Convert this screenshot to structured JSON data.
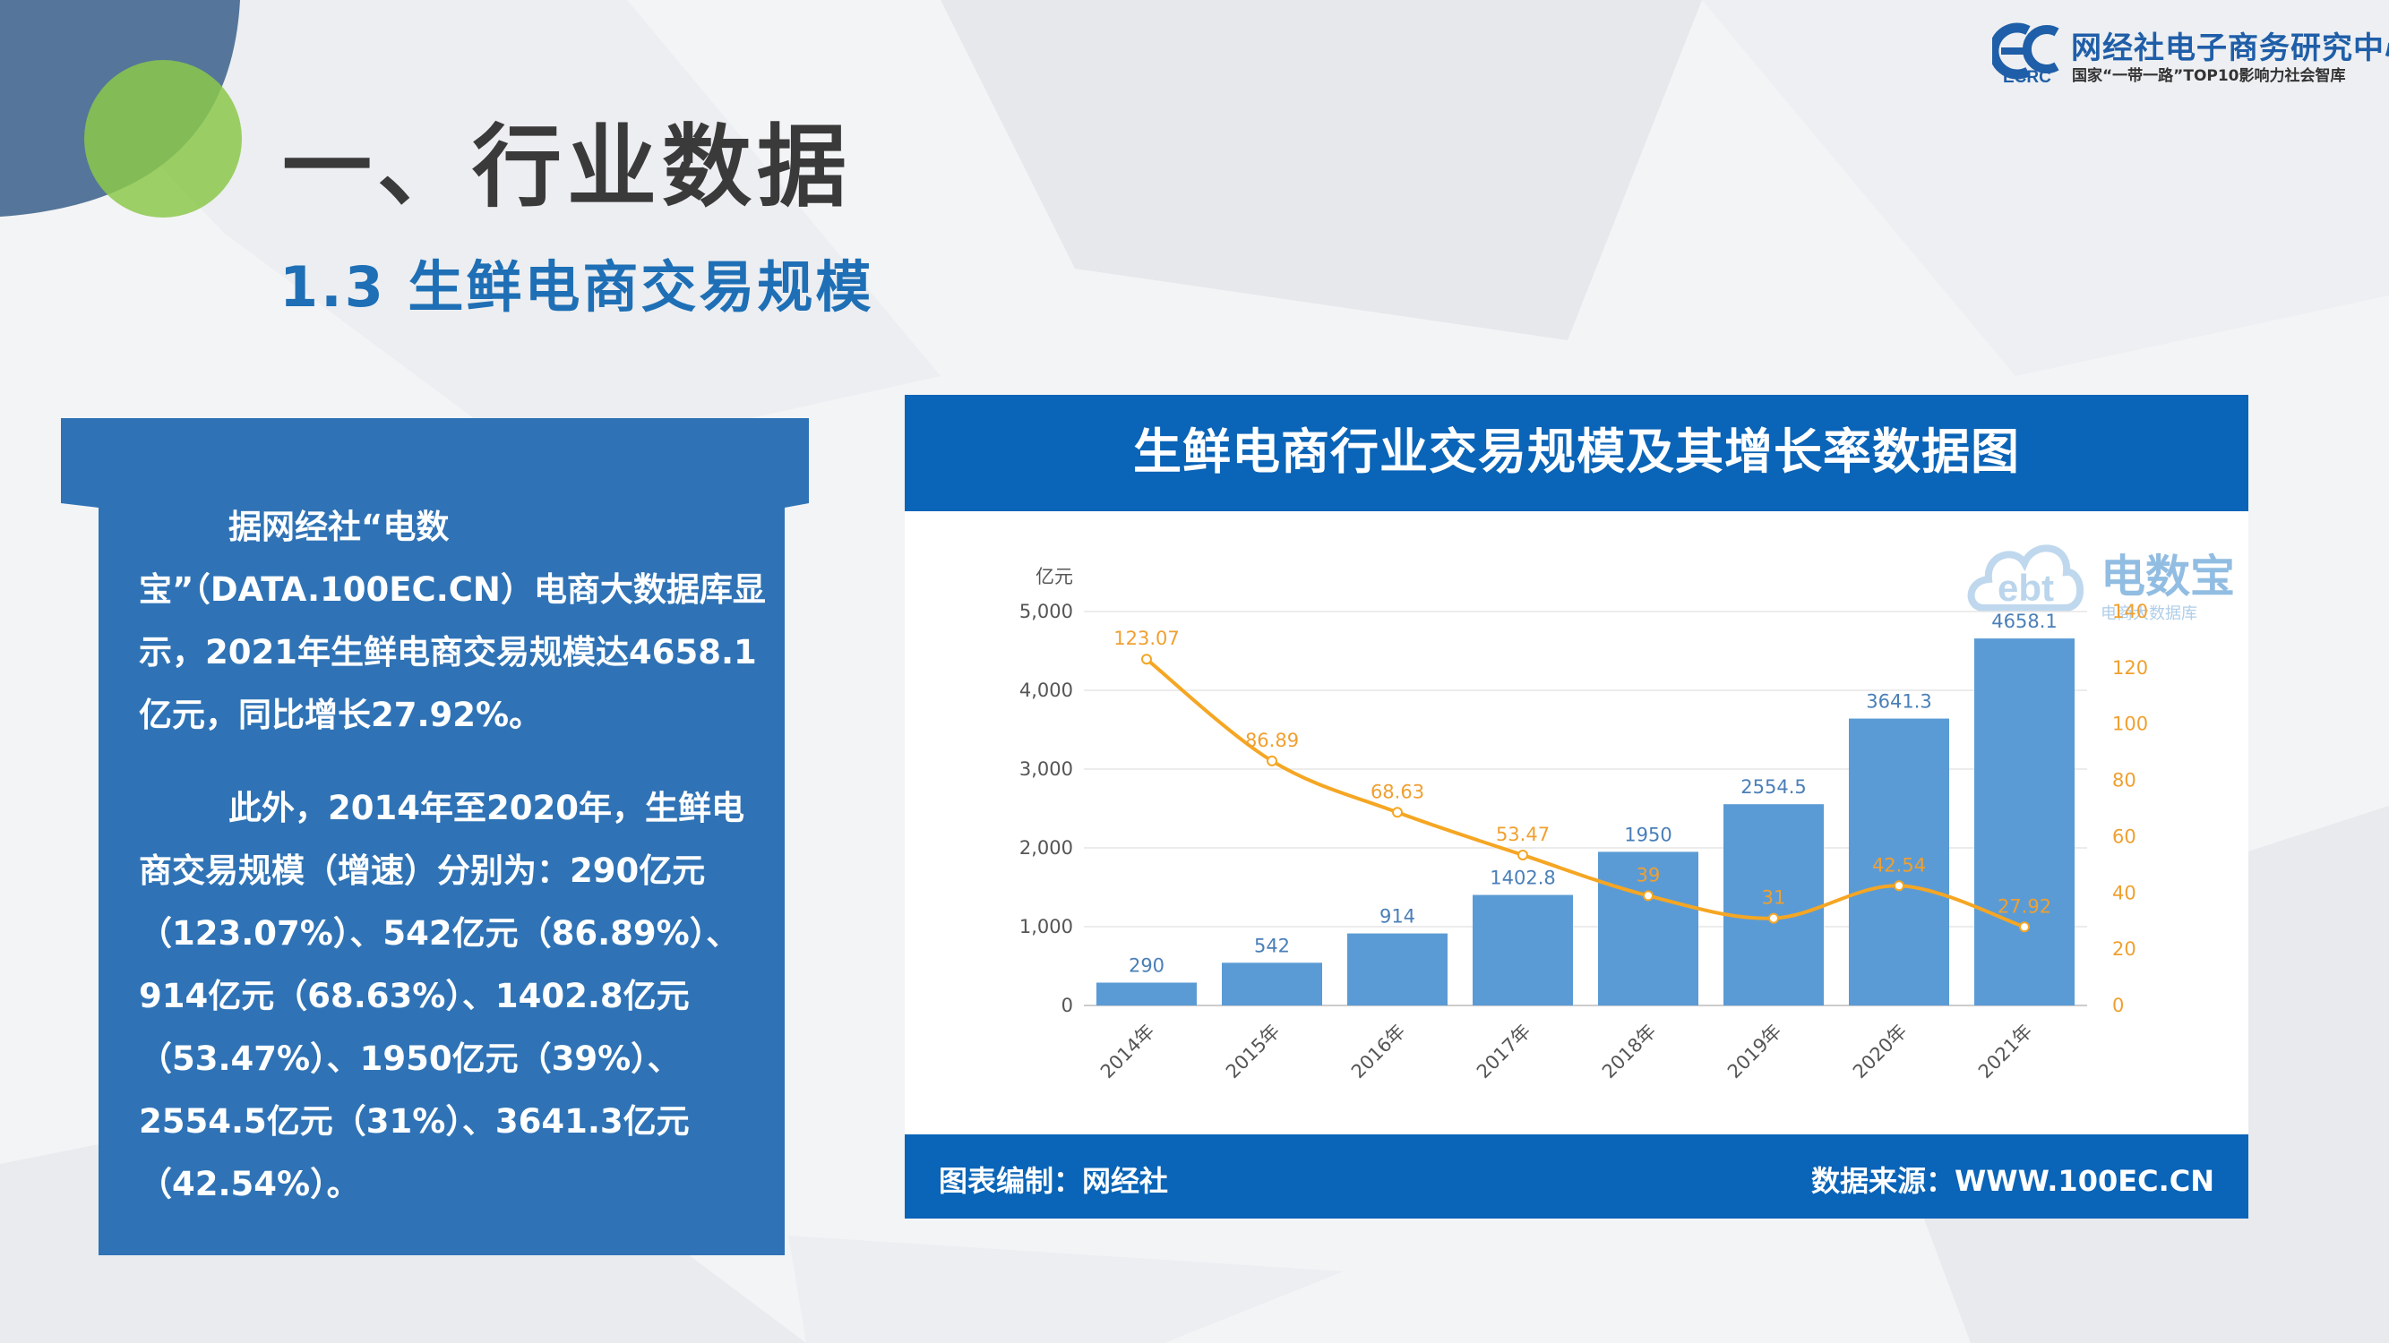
{
  "header": {
    "title": "一、行业数据",
    "subtitle": "1.3 生鲜电商交易规模"
  },
  "brand": {
    "name": "网经社电子商务研究中心",
    "tagline": "国家“一带一路”TOP10影响力社会智库",
    "abbr": "ECRC"
  },
  "text_card": {
    "para1": "据网经社“电数宝”（DATA.100EC.CN）电商大数据库显示，2021年生鲜电商交易规模达4658.1亿元，同比增长27.92%。",
    "para2": "此外，2014年至2020年，生鲜电商交易规模（增速）分别为：290亿元（123.07%）、542亿元（86.89%）、914亿元（68.63%）、1402.8亿元（53.47%）、1950亿元（39%）、2554.5亿元（31%）、3641.3亿元（42.54%）。"
  },
  "chart_panel": {
    "title": "生鲜电商行业交易规模及其增长率数据图",
    "footer_left": "图表编制：网经社",
    "footer_right": "数据来源：WWW.100EC.CN",
    "watermark": "电数宝",
    "watermark_sub": "电商大数据库"
  },
  "chart_data": {
    "type": "bar",
    "categories": [
      "2014年",
      "2015年",
      "2016年",
      "2017年",
      "2018年",
      "2019年",
      "2020年",
      "2021年"
    ],
    "series": [
      {
        "type": "bar",
        "axis": "left",
        "values": [
          290,
          542,
          914,
          1402.8,
          1950,
          2554.5,
          3641.3,
          4658.1
        ],
        "labels": [
          "290",
          "542",
          "914",
          "1402.8",
          "1950",
          "2554.5",
          "3641.3",
          "4658.1"
        ],
        "color": "#5b9bd5"
      },
      {
        "type": "line",
        "axis": "right",
        "values": [
          123.07,
          86.89,
          68.63,
          53.47,
          39,
          31,
          42.54,
          27.92
        ],
        "labels": [
          "123.07",
          "86.89",
          "68.63",
          "53.47",
          "39",
          "31",
          "42.54",
          "27.92"
        ],
        "color": "#f5a623"
      }
    ],
    "y_left": {
      "unit": "亿元",
      "ylim": [
        0,
        5000
      ],
      "ticks": [
        "0",
        "1,000",
        "2,000",
        "3,000",
        "4,000",
        "5,000"
      ]
    },
    "y_right": {
      "ylim": [
        0,
        140
      ],
      "ticks": [
        "0",
        "20",
        "40",
        "60",
        "80",
        "100",
        "120",
        "140"
      ]
    },
    "grid": true
  }
}
